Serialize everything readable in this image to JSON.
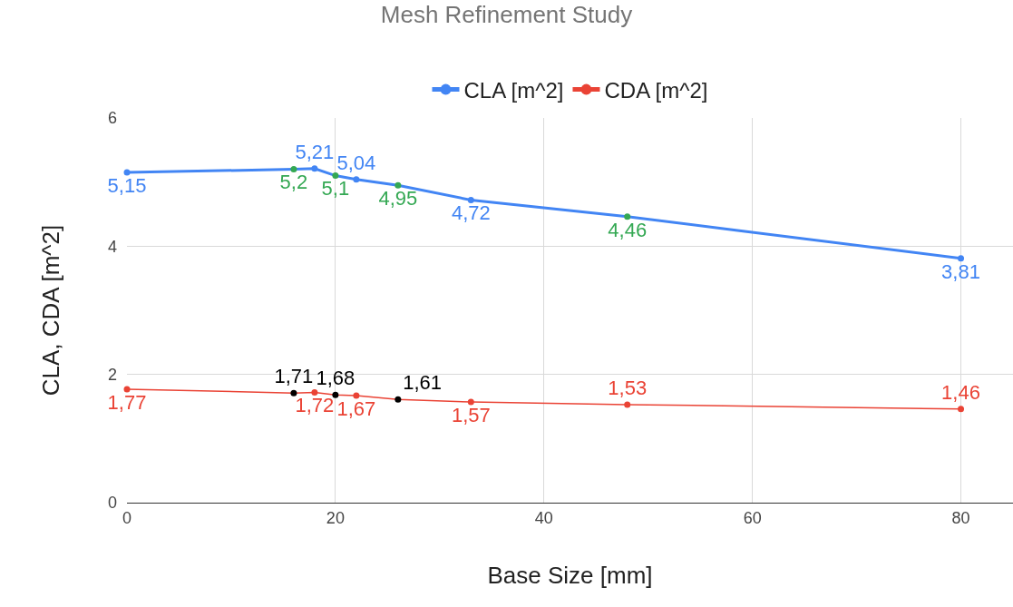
{
  "chart_data": {
    "type": "line",
    "title": "Mesh Refinement Study",
    "xlabel": "Base Size [mm]",
    "ylabel": "CLA, CDA [m^2]",
    "xlim": [
      0,
      85
    ],
    "xticks": [
      0,
      20,
      40,
      60,
      80
    ],
    "ylim": [
      0,
      6
    ],
    "yticks": [
      0,
      2,
      4,
      6
    ],
    "grid": true,
    "legend": "top",
    "marker": "circle",
    "series": [
      {
        "name": "CLA [m^2]",
        "color": "#4285f4",
        "x": [
          0,
          16,
          18,
          20,
          22,
          26,
          33,
          48,
          80
        ],
        "values": [
          5.15,
          5.2,
          5.21,
          5.1,
          5.04,
          4.95,
          4.72,
          4.46,
          3.81
        ],
        "colors": [
          "#4285f4",
          "#34a853",
          "#4285f4",
          "#34a853",
          "#4285f4",
          "#34a853",
          "#4285f4",
          "#34a853",
          "#4285f4"
        ],
        "value_labels": [
          "5,15",
          "5,2",
          "5,21",
          "5,1",
          "5,04",
          "4,95",
          "4,72",
          "4,46",
          "3,81"
        ]
      },
      {
        "name": "CDA [m^2]",
        "color": "#ea4335",
        "x": [
          0,
          16,
          18,
          20,
          22,
          26,
          33,
          48,
          80
        ],
        "values": [
          1.77,
          1.71,
          1.72,
          1.68,
          1.67,
          1.61,
          1.57,
          1.53,
          1.46
        ],
        "colors": [
          "#ea4335",
          "#000000",
          "#ea4335",
          "#000000",
          "#ea4335",
          "#000000",
          "#ea4335",
          "#ea4335",
          "#ea4335"
        ],
        "value_labels": [
          "1,77",
          "1,71",
          "1,72",
          "1,68",
          "1,67",
          "1,61",
          "1,57",
          "1,53",
          "1,46"
        ]
      }
    ]
  }
}
